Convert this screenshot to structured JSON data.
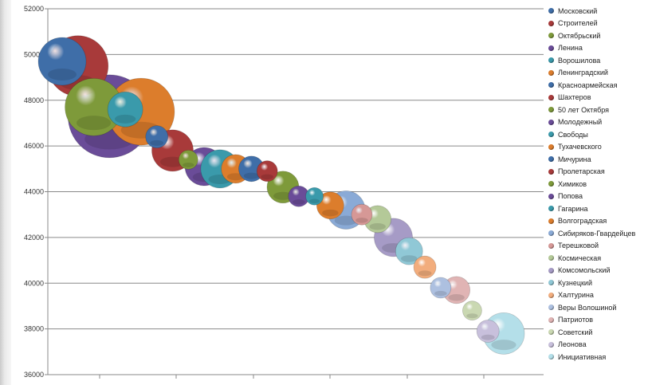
{
  "chart_data": {
    "type": "bubble",
    "title": "",
    "xlabel": "",
    "ylabel": "",
    "ylim": [
      36000,
      52000
    ],
    "y_ticks": [
      "52000",
      "50000",
      "48000",
      "46000",
      "44000",
      "42000",
      "40000",
      "38000",
      "36000"
    ],
    "grid": true,
    "legend_position": "right",
    "series": [
      {
        "name": "Московский",
        "x": 1,
        "y": 49700,
        "size": 30,
        "color": "#3f6ea8"
      },
      {
        "name": "Строителей",
        "x": 2,
        "y": 49500,
        "size": 38,
        "color": "#a83a3a"
      },
      {
        "name": "Октябрьский",
        "x": 3,
        "y": 47700,
        "size": 36,
        "color": "#7e9a3a"
      },
      {
        "name": "Ленина",
        "x": 4,
        "y": 47300,
        "size": 52,
        "color": "#6a4c98"
      },
      {
        "name": "Ворошилова",
        "x": 5,
        "y": 47600,
        "size": 22,
        "color": "#3a9aab"
      },
      {
        "name": "Ленинградский",
        "x": 6,
        "y": 47500,
        "size": 42,
        "color": "#dc7d2c"
      },
      {
        "name": "Красноармейская",
        "x": 7,
        "y": 46400,
        "size": 14,
        "color": "#3f6ea8"
      },
      {
        "name": "Шахтеров",
        "x": 8,
        "y": 45800,
        "size": 26,
        "color": "#a83a3a"
      },
      {
        "name": "50 лет Октября",
        "x": 9,
        "y": 45400,
        "size": 12,
        "color": "#7e9a3a"
      },
      {
        "name": "Молодежный",
        "x": 10,
        "y": 45100,
        "size": 24,
        "color": "#6a4c98"
      },
      {
        "name": "Свободы",
        "x": 11,
        "y": 45000,
        "size": 24,
        "color": "#3a9aab"
      },
      {
        "name": "Тухачевского",
        "x": 12,
        "y": 45000,
        "size": 18,
        "color": "#dc7d2c"
      },
      {
        "name": "Мичурина",
        "x": 13,
        "y": 45000,
        "size": 16,
        "color": "#3f6ea8"
      },
      {
        "name": "Пролетарская",
        "x": 14,
        "y": 44900,
        "size": 13,
        "color": "#a83a3a"
      },
      {
        "name": "Химиков",
        "x": 15,
        "y": 44200,
        "size": 20,
        "color": "#7e9a3a"
      },
      {
        "name": "Попова",
        "x": 16,
        "y": 43800,
        "size": 13,
        "color": "#6a4c98"
      },
      {
        "name": "Гагарина",
        "x": 17,
        "y": 43800,
        "size": 11,
        "color": "#3a9aab"
      },
      {
        "name": "Волгоградская",
        "x": 18,
        "y": 43400,
        "size": 17,
        "color": "#dc7d2c"
      },
      {
        "name": "Сибиряков-Гвардейцев",
        "x": 19,
        "y": 43200,
        "size": 24,
        "color": "#8aaad6"
      },
      {
        "name": "Терешковой",
        "x": 20,
        "y": 43000,
        "size": 13,
        "color": "#d69896"
      },
      {
        "name": "Космическая",
        "x": 21,
        "y": 42800,
        "size": 17,
        "color": "#b4c998"
      },
      {
        "name": "Комсомольский",
        "x": 22,
        "y": 42000,
        "size": 24,
        "color": "#a69bc6"
      },
      {
        "name": "Кузнецкий",
        "x": 23,
        "y": 41400,
        "size": 17,
        "color": "#90c8d6"
      },
      {
        "name": "Халтурина",
        "x": 24,
        "y": 40700,
        "size": 14,
        "color": "#f2ad7d"
      },
      {
        "name": "Веры Волошиной",
        "x": 25,
        "y": 39800,
        "size": 13,
        "color": "#adc0e0"
      },
      {
        "name": "Патриотов",
        "x": 26,
        "y": 39700,
        "size": 17,
        "color": "#e0b4b4"
      },
      {
        "name": "Советский",
        "x": 27,
        "y": 38800,
        "size": 12,
        "color": "#cad8b2"
      },
      {
        "name": "Леонова",
        "x": 28,
        "y": 37900,
        "size": 14,
        "color": "#c8c0dc"
      },
      {
        "name": "Инициативная",
        "x": 29,
        "y": 37800,
        "size": 26,
        "color": "#b4dfe9"
      }
    ]
  }
}
